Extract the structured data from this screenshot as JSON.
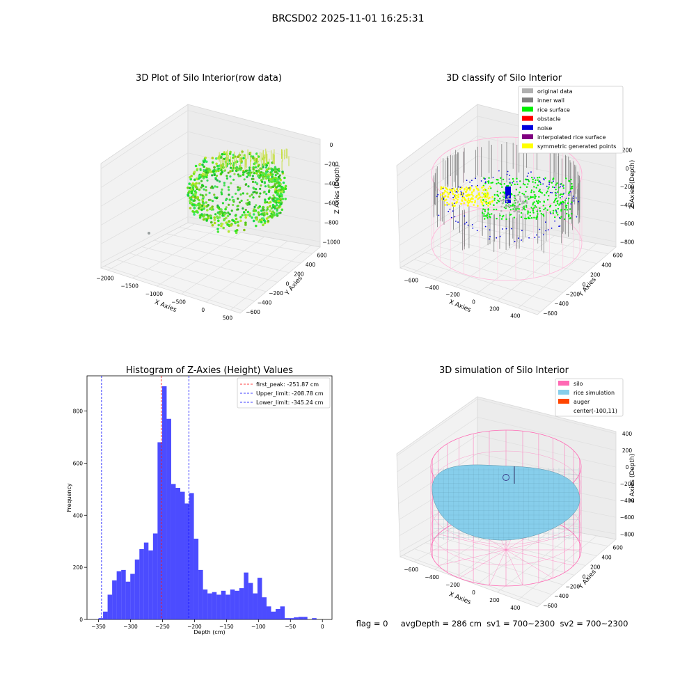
{
  "suptitle": "BRCSD02 2025-11-01 16:25:31",
  "footer": "flag = 0     avgDepth = 286 cm  sv1 = 700~2300  sv2 = 700~2300",
  "colors": {
    "bar": "#0000ff",
    "peak_line": "#ff0000",
    "limit_line": "#0000ff",
    "silo": "#ff69b4",
    "rice": "#87ceeb",
    "auger": "#ff4500"
  },
  "chart_data": [
    {
      "type": "scatter3d",
      "title": "3D Plot of Silo Interior(row data)",
      "xlabel": "X Axies",
      "ylabel": "Y Axies",
      "zlabel": "Z Axies (Depth)",
      "x_ticks": [
        "−2000",
        "−1500",
        "−1000",
        "−500",
        "0",
        "500"
      ],
      "y_ticks": [
        "−600",
        "−400",
        "−200",
        "0",
        "200",
        "400",
        "600"
      ],
      "z_ticks": [
        "0",
        "−200",
        "−400",
        "−600",
        "−800",
        "−1000"
      ],
      "colormap": "viridis-yellow"
    },
    {
      "type": "scatter3d",
      "title": "3D classify of Silo Interior",
      "xlabel": "X Axies",
      "ylabel": "Y Axies",
      "zlabel": "Z Axies (Depth)",
      "x_ticks": [
        "−600",
        "−400",
        "−200",
        "0",
        "200",
        "400"
      ],
      "y_ticks": [
        "−600",
        "−400",
        "−200",
        "0",
        "200",
        "400",
        "600"
      ],
      "z_ticks": [
        "200",
        "0",
        "−200",
        "−400",
        "−600",
        "−800"
      ],
      "legend": [
        {
          "label": "original data",
          "color": "#b0b0b0"
        },
        {
          "label": "inner wall",
          "color": "#808080"
        },
        {
          "label": "rice surface",
          "color": "#00ee00"
        },
        {
          "label": "obstacle",
          "color": "#ff0000"
        },
        {
          "label": "noise",
          "color": "#0000dd"
        },
        {
          "label": "interpolated rice surface",
          "color": "#800080"
        },
        {
          "label": "symmetric generated points",
          "color": "#ffff00"
        }
      ],
      "legend_position": "top-right"
    },
    {
      "type": "bar",
      "title": "Histogram of Z-Axies (Height) Values",
      "xlabel": "Depth (cm)",
      "ylabel": "Frequency",
      "xlim": [
        -368,
        15
      ],
      "ylim": [
        0,
        935
      ],
      "x_ticks": [
        -350,
        -300,
        -250,
        -200,
        -150,
        -100,
        -50,
        0
      ],
      "y_ticks": [
        0,
        200,
        400,
        600,
        800
      ],
      "bin_start": -350,
      "bin_width": 7.1,
      "values": [
        5,
        30,
        95,
        150,
        185,
        190,
        145,
        175,
        230,
        270,
        295,
        265,
        330,
        680,
        895,
        770,
        520,
        505,
        490,
        445,
        485,
        310,
        190,
        115,
        100,
        105,
        95,
        110,
        95,
        115,
        110,
        120,
        180,
        140,
        100,
        160,
        85,
        50,
        30,
        40,
        50,
        5,
        5,
        8,
        10,
        10,
        0,
        5
      ],
      "lines": [
        {
          "label": "first_peak: -251.87 cm",
          "x": -251.87,
          "color": "#ff0000"
        },
        {
          "label": "Upper_limit: -208.78 cm",
          "x": -208.78,
          "color": "#0000ff"
        },
        {
          "label": "Lower_limit: -345.24 cm",
          "x": -345.24,
          "color": "#0000ff"
        }
      ],
      "legend_position": "top-right"
    },
    {
      "type": "surface3d",
      "title": "3D simulation of Silo Interior",
      "xlabel": "X Axies",
      "ylabel": "Y Axies",
      "zlabel": "Z Axies (Depth)",
      "x_ticks": [
        "−600",
        "−400",
        "−200",
        "0",
        "200",
        "400"
      ],
      "y_ticks": [
        "−600",
        "−400",
        "−200",
        "0",
        "200",
        "400",
        "600"
      ],
      "z_ticks": [
        "400",
        "200",
        "0",
        "−200",
        "−400",
        "−600",
        "−800"
      ],
      "legend": [
        {
          "label": "silo",
          "color": "#ff69b4"
        },
        {
          "label": "rice simulation",
          "color": "#87ceeb"
        },
        {
          "label": "auger",
          "color": "#ff4500"
        },
        {
          "label": "center(-100,11)",
          "color": ""
        }
      ],
      "legend_position": "top-right"
    }
  ]
}
